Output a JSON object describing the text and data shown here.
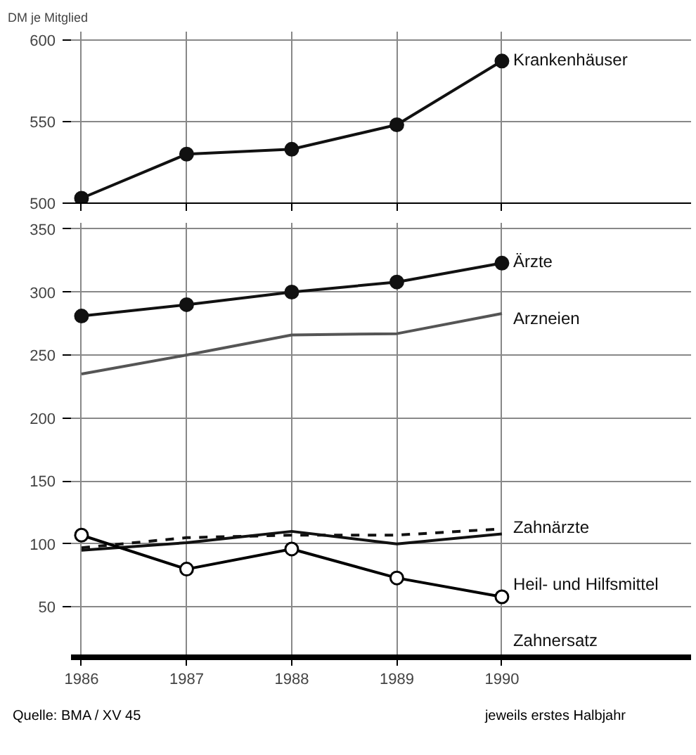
{
  "chart_data": [
    {
      "type": "line",
      "ylabel": "DM je Mitglied",
      "x": [
        1986,
        1987,
        1988,
        1989,
        1990
      ],
      "xlim": [
        1985.9,
        1991.8
      ],
      "xticks": [
        1986,
        1987,
        1988,
        1989,
        1990
      ],
      "ylim": [
        500,
        605
      ],
      "yticks": [
        500,
        550,
        600
      ],
      "grid": true,
      "tick_labels": "y",
      "series": [
        {
          "name": "Krankenhäuser",
          "color": "#111111",
          "marker": "circle",
          "values": [
            503,
            530,
            533,
            548,
            587
          ]
        }
      ]
    },
    {
      "type": "line",
      "x": [
        1986,
        1987,
        1988,
        1989,
        1990
      ],
      "xlim": [
        1985.9,
        1991.8
      ],
      "xticks": [
        1986,
        1987,
        1988,
        1989,
        1990
      ],
      "ylim": [
        10,
        355
      ],
      "yticks": [
        50,
        100,
        150,
        200,
        250,
        300,
        350
      ],
      "grid": true,
      "annotations": [
        "Quelle: BMA / XV 45",
        "jeweils erstes Halbjahr"
      ],
      "series": [
        {
          "name": "Ärzte",
          "color": "#111111",
          "marker": "circle",
          "values": [
            281,
            290,
            300,
            308,
            323
          ]
        },
        {
          "name": "Arzneien",
          "color": "#555555",
          "marker": "none",
          "values": [
            235,
            250,
            266,
            267,
            283
          ]
        },
        {
          "name": "Zahnärzte",
          "color": "#111111",
          "marker": "none",
          "line_style": "dashed",
          "values": [
            97,
            105,
            107,
            107,
            112
          ]
        },
        {
          "name": "Heil- und Hilfsmittel",
          "color": "#111111",
          "marker": "none",
          "values": [
            95,
            101,
            110,
            100,
            108
          ]
        },
        {
          "name": "Zahnersatz",
          "color": "#000000",
          "marker": "circle",
          "values": [
            107,
            80,
            96,
            73,
            58
          ]
        }
      ]
    }
  ]
}
